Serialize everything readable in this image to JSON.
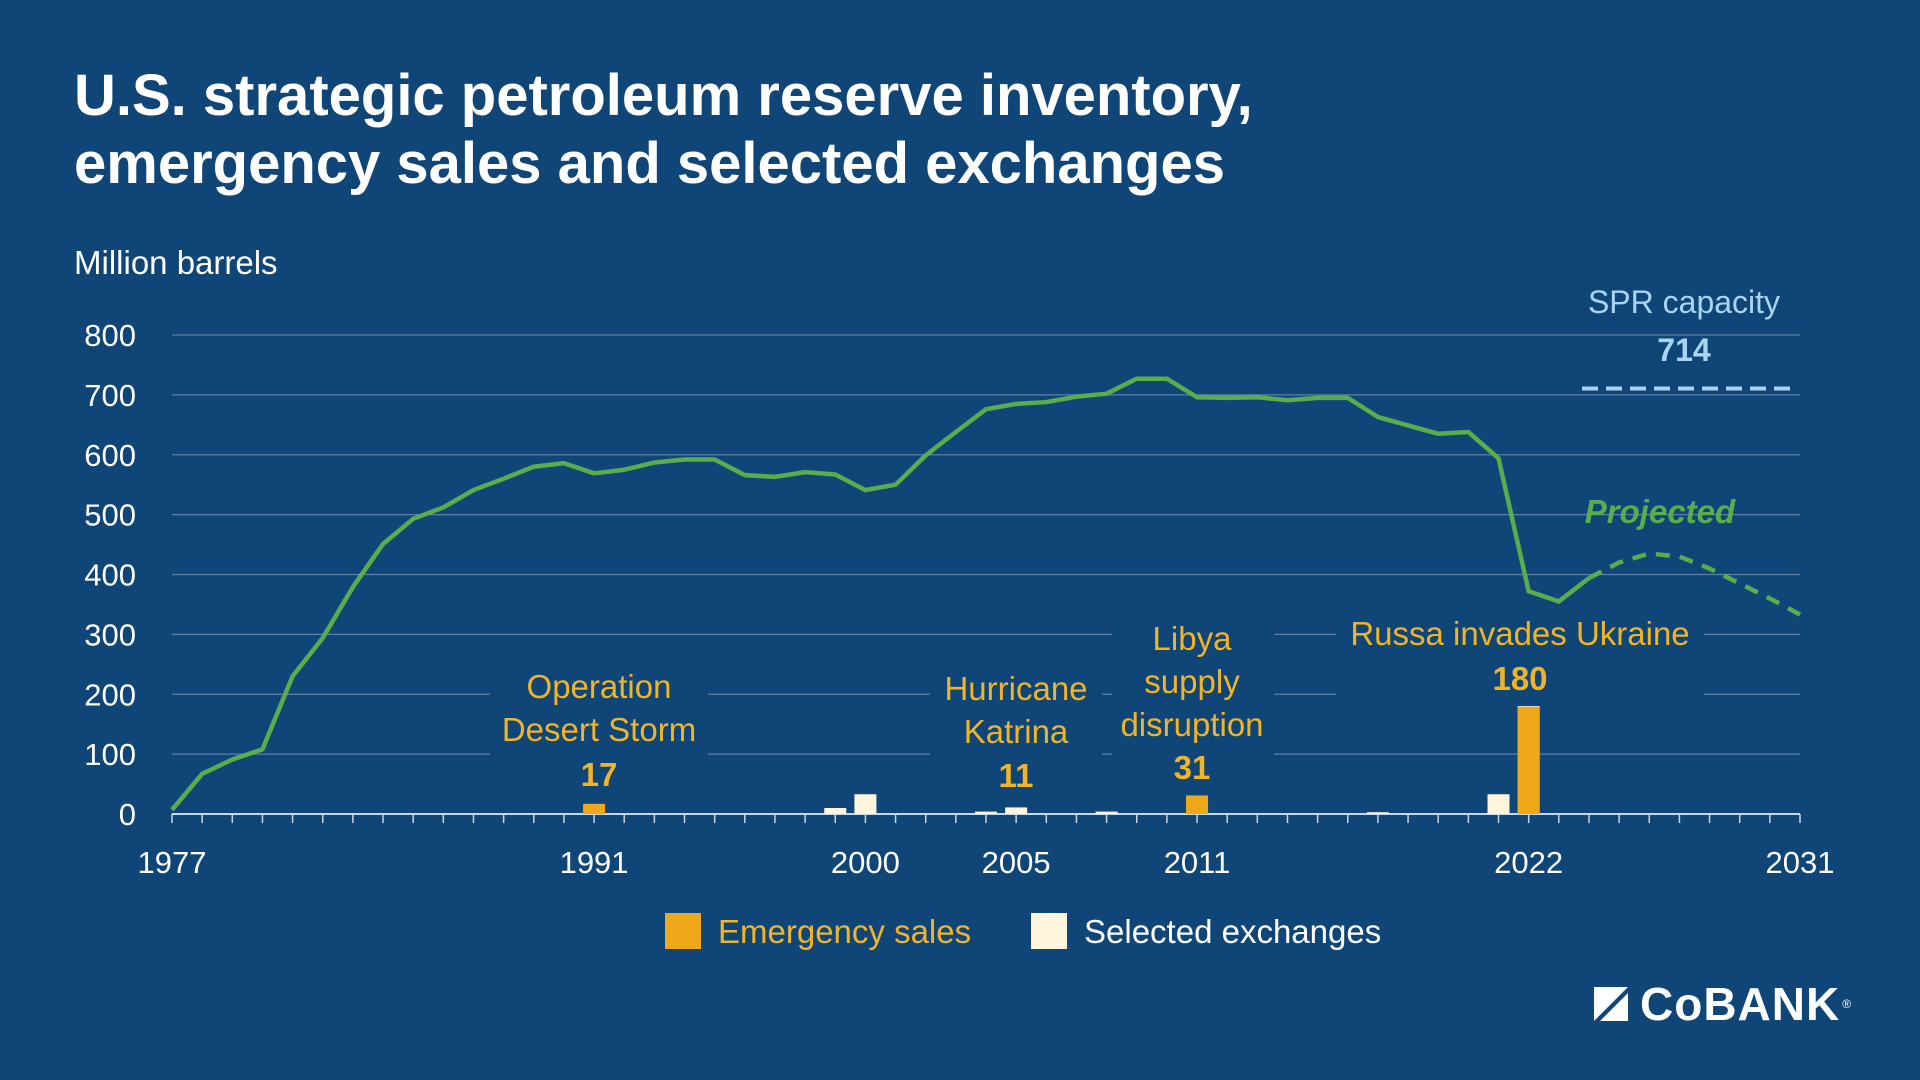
{
  "title_line1": "U.S. strategic petroleum reserve inventory,",
  "title_line2": "emergency sales and selected exchanges",
  "colors": {
    "background": "#0f4677",
    "inventory": "#5aad4d",
    "emergency": "#f0a81b",
    "exchange": "#fff4dc",
    "capacity": "#a9d4f2",
    "annotation": "#f0b429",
    "grid": "#5d7fa3"
  },
  "logo": {
    "text": "CoBANK",
    "icon": "cobank-logo-icon"
  },
  "chart_data": {
    "type": "line",
    "ylabel": "Million barrels",
    "ylim": [
      0,
      800
    ],
    "yticks": [
      0,
      100,
      200,
      300,
      400,
      500,
      600,
      700,
      800
    ],
    "xlim": [
      1977,
      2031
    ],
    "xticks": [
      1977,
      1991,
      2000,
      2005,
      2011,
      2022,
      2031
    ],
    "grid": true,
    "series": [
      {
        "type": "line",
        "x": [
          1977,
          1978,
          1979,
          1980,
          1981,
          1982,
          1983,
          1984,
          1985,
          1986,
          1987,
          1988,
          1989,
          1990,
          1991,
          1992,
          1993,
          1994,
          1995,
          1996,
          1997,
          1998,
          1999,
          2000,
          2001,
          2002,
          2003,
          2004,
          2005,
          2006,
          2007,
          2008,
          2009,
          2010,
          2011,
          2012,
          2013,
          2014,
          2015,
          2016,
          2017,
          2018,
          2019,
          2020,
          2021,
          2022,
          2023,
          2024
        ],
        "values": [
          7,
          67,
          91,
          108,
          230,
          294,
          379,
          451,
          493,
          512,
          541,
          560,
          580,
          586,
          569,
          575,
          587,
          592,
          592,
          566,
          563,
          571,
          567,
          541,
          550,
          599,
          638,
          676,
          685,
          688,
          697,
          702,
          727,
          727,
          696,
          695,
          696,
          691,
          695,
          695,
          663,
          649,
          635,
          638,
          594,
          372,
          355,
          394
        ]
      },
      {
        "name": "Projected",
        "type": "line",
        "style": "dashed",
        "x": [
          2024,
          2025,
          2026,
          2027,
          2028,
          2029,
          2030,
          2031
        ],
        "values": [
          394,
          420,
          435,
          430,
          410,
          385,
          360,
          333
        ]
      },
      {
        "name": "Emergency sales",
        "type": "bar",
        "x": [
          1991,
          2005,
          2011,
          2022
        ],
        "values": [
          17,
          11,
          31,
          180
        ]
      },
      {
        "name": "Selected exchanges",
        "type": "bar",
        "x": [
          1999,
          2000,
          2004,
          2005,
          2008,
          2017,
          2021,
          2022
        ],
        "values": [
          10,
          33,
          4,
          11,
          4,
          3,
          33,
          1
        ]
      }
    ],
    "capacity": {
      "label": "SPR capacity",
      "value": 714,
      "value_label": "714"
    },
    "projected_label": "Projected",
    "annotations": [
      {
        "lines": [
          "Operation",
          "Desert Storm"
        ],
        "value_label": "17"
      },
      {
        "lines": [
          "Hurricane",
          "Katrina"
        ],
        "value_label": "11"
      },
      {
        "lines": [
          "Libya",
          "supply",
          "disruption"
        ],
        "value_label": "31"
      },
      {
        "lines": [
          "Russa invades Ukraine"
        ],
        "value_label": "180"
      }
    ],
    "legend": [
      {
        "label": "Emergency sales",
        "color": "#f0a81b"
      },
      {
        "label": "Selected exchanges",
        "color": "#fff4dc"
      }
    ],
    "legend_position": "bottom-center"
  }
}
